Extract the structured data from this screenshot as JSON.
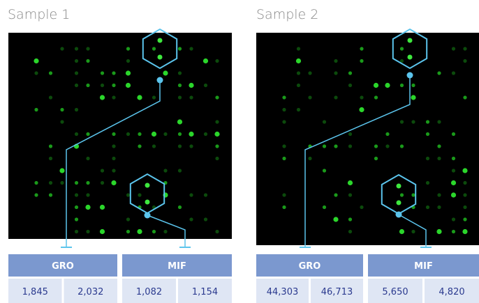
{
  "panels": [
    {
      "title": "Sample 1",
      "table": {
        "headers": [
          "GRO",
          "MIF"
        ],
        "values": [
          "1,845",
          "2,032",
          "1,082",
          "1,154"
        ]
      }
    },
    {
      "title": "Sample 2",
      "table": {
        "headers": [
          "GRO",
          "MIF"
        ],
        "values": [
          "44,303",
          "46,713",
          "5,650",
          "4,820"
        ]
      }
    }
  ]
}
